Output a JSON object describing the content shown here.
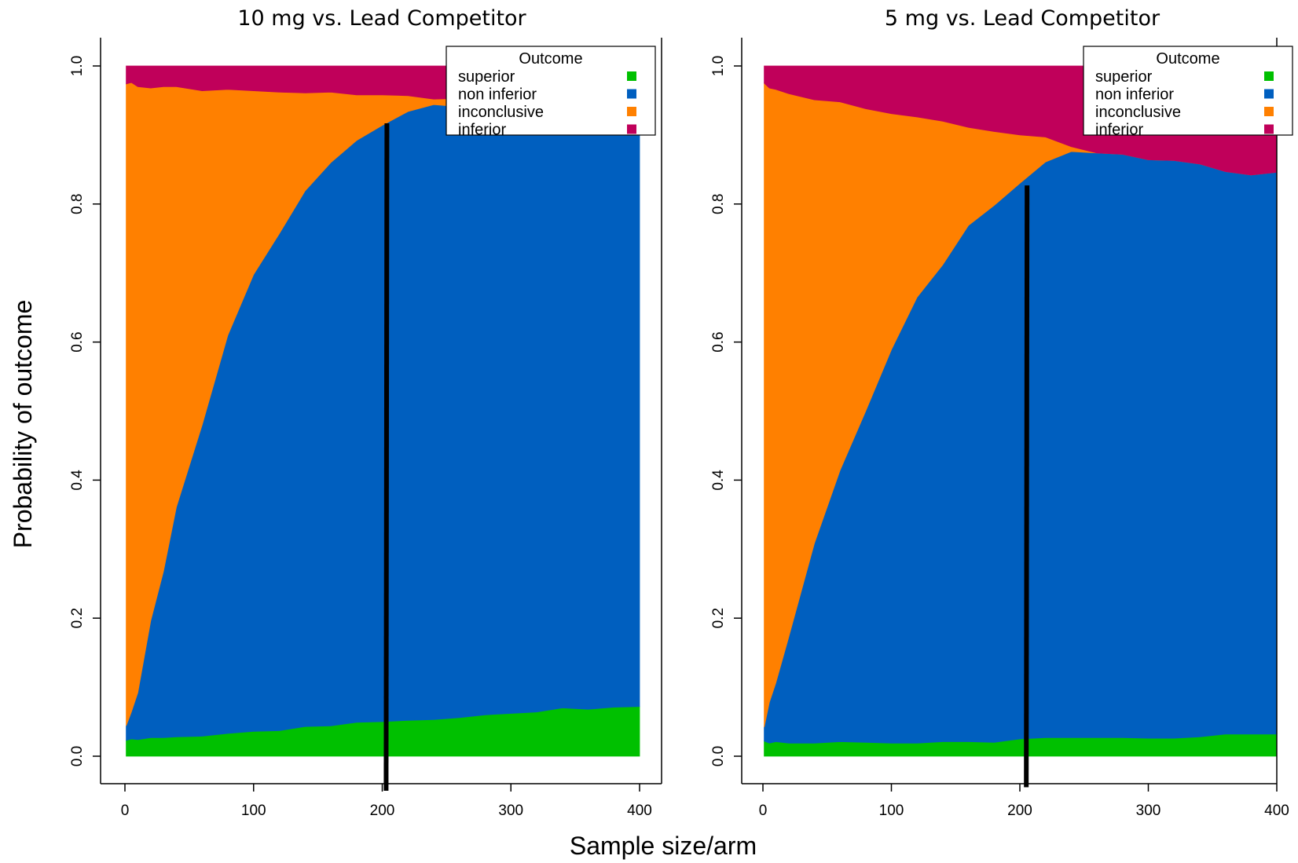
{
  "figure": {
    "ylabel": "Probability of outcome",
    "xlabel": "Sample size/arm"
  },
  "colors": {
    "superior": "#00c000",
    "non inferior": "#005fbf",
    "inconclusive": "#ff8000",
    "inferior": "#c0005a"
  },
  "chart_data": [
    {
      "type": "area",
      "stacked": true,
      "title": "10 mg vs. Lead Competitor",
      "xlabel": "Sample size/arm",
      "ylabel": "Probability of outcome",
      "xlim": [
        0,
        400
      ],
      "ylim": [
        0,
        1
      ],
      "xticks": [
        0,
        100,
        200,
        300,
        400
      ],
      "yticks": [
        "0.0",
        "0.2",
        "0.4",
        "0.6",
        "0.8",
        "1.0"
      ],
      "grid": false,
      "legend": {
        "title": "Outcome",
        "position": "top-right",
        "entries": [
          "superior",
          "non inferior",
          "inconclusive",
          "inferior"
        ]
      },
      "x": [
        1,
        5,
        10,
        20,
        30,
        40,
        60,
        80,
        100,
        120,
        140,
        160,
        180,
        200,
        220,
        240,
        260,
        280,
        300,
        320,
        340,
        360,
        380,
        400
      ],
      "series": [
        {
          "name": "superior",
          "values": [
            0.023,
            0.025,
            0.024,
            0.027,
            0.027,
            0.028,
            0.029,
            0.033,
            0.036,
            0.037,
            0.043,
            0.044,
            0.049,
            0.05,
            0.052,
            0.053,
            0.056,
            0.06,
            0.062,
            0.064,
            0.07,
            0.068,
            0.071,
            0.072
          ]
        },
        {
          "name": "non inferior",
          "values": [
            0.021,
            0.039,
            0.068,
            0.169,
            0.241,
            0.333,
            0.451,
            0.577,
            0.662,
            0.72,
            0.776,
            0.816,
            0.843,
            0.864,
            0.882,
            0.891,
            0.885,
            0.877,
            0.875,
            0.873,
            0.866,
            0.867,
            0.862,
            0.858
          ]
        },
        {
          "name": "inconclusive",
          "values": [
            0.93,
            0.912,
            0.878,
            0.772,
            0.702,
            0.609,
            0.484,
            0.356,
            0.266,
            0.205,
            0.142,
            0.102,
            0.066,
            0.044,
            0.023,
            0.008,
            0.012,
            0.018,
            0.023,
            0.023,
            0.024,
            0.025,
            0.027,
            0.028
          ]
        },
        {
          "name": "inferior",
          "values": [
            0.026,
            0.024,
            0.03,
            0.032,
            0.03,
            0.03,
            0.036,
            0.034,
            0.036,
            0.038,
            0.039,
            0.038,
            0.042,
            0.042,
            0.043,
            0.048,
            0.047,
            0.045,
            0.04,
            0.04,
            0.04,
            0.04,
            0.04,
            0.042
          ]
        }
      ],
      "reference_line": {
        "x": 203,
        "y_start": 0.917,
        "y_end": -0.05
      }
    },
    {
      "type": "area",
      "stacked": true,
      "title": "5 mg vs. Lead Competitor",
      "xlabel": "Sample size/arm",
      "ylabel": "Probability of outcome",
      "xlim": [
        0,
        400
      ],
      "ylim": [
        0,
        1
      ],
      "xticks": [
        0,
        100,
        200,
        300,
        400
      ],
      "yticks": [
        "0.0",
        "0.2",
        "0.4",
        "0.6",
        "0.8",
        "1.0"
      ],
      "grid": false,
      "legend": {
        "title": "Outcome",
        "position": "top-right",
        "entries": [
          "superior",
          "non inferior",
          "inconclusive",
          "inferior"
        ]
      },
      "x": [
        1,
        5,
        10,
        20,
        40,
        60,
        80,
        100,
        120,
        140,
        160,
        180,
        200,
        220,
        240,
        260,
        280,
        300,
        320,
        340,
        360,
        380,
        400
      ],
      "series": [
        {
          "name": "superior",
          "values": [
            0.022,
            0.019,
            0.021,
            0.019,
            0.019,
            0.021,
            0.02,
            0.019,
            0.019,
            0.021,
            0.021,
            0.02,
            0.025,
            0.027,
            0.027,
            0.027,
            0.027,
            0.026,
            0.026,
            0.028,
            0.032,
            0.032,
            0.032
          ]
        },
        {
          "name": "non inferior",
          "values": [
            0.02,
            0.059,
            0.085,
            0.153,
            0.289,
            0.393,
            0.48,
            0.57,
            0.646,
            0.691,
            0.748,
            0.778,
            0.805,
            0.834,
            0.849,
            0.847,
            0.845,
            0.838,
            0.837,
            0.83,
            0.815,
            0.81,
            0.814
          ]
        },
        {
          "name": "inconclusive",
          "values": [
            0.933,
            0.89,
            0.86,
            0.788,
            0.643,
            0.534,
            0.438,
            0.342,
            0.261,
            0.208,
            0.142,
            0.107,
            0.07,
            0.036,
            0.007,
            0.0,
            0.0,
            0.0,
            0.0,
            0.0,
            0.0,
            0.0,
            0.0
          ]
        },
        {
          "name": "inferior",
          "values": [
            0.025,
            0.032,
            0.034,
            0.04,
            0.049,
            0.052,
            0.062,
            0.069,
            0.074,
            0.08,
            0.089,
            0.095,
            0.1,
            0.103,
            0.117,
            0.126,
            0.128,
            0.136,
            0.137,
            0.142,
            0.153,
            0.158,
            0.154
          ]
        }
      ],
      "reference_line": {
        "x": 205,
        "y_start": 0.827,
        "y_end": -0.045
      }
    }
  ]
}
